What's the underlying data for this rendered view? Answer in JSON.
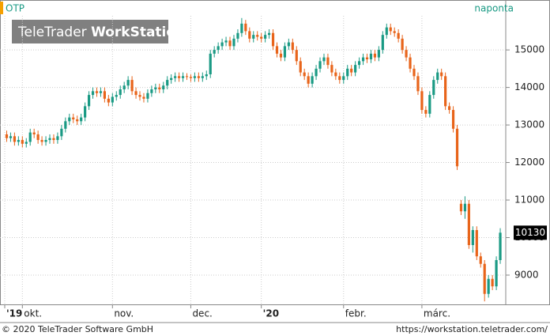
{
  "chart_data": {
    "type": "candlestick",
    "title": "OTP",
    "frequency": "naponta",
    "logo": [
      "TeleTrader",
      "WorkStation"
    ],
    "footer_left": "© 2020 TeleTrader Software GmbH",
    "footer_right": "https://workstation.teletrader.com/",
    "up_color": "#1a9a84",
    "down_color": "#e8641a",
    "grid": true,
    "ylim": [
      8220,
      16330
    ],
    "yticks": [
      9000,
      10000,
      11000,
      12000,
      13000,
      14000,
      15000
    ],
    "xlim": [
      -0.5,
      127
    ],
    "xticks": [
      {
        "value": -0.5,
        "label": "'19"
      },
      {
        "value": 4,
        "label": "okt."
      },
      {
        "value": 27,
        "label": "nov."
      },
      {
        "value": 47,
        "label": "dec."
      },
      {
        "value": 65,
        "label": "'20"
      },
      {
        "value": 86,
        "label": "febr."
      },
      {
        "value": 106,
        "label": "márc."
      }
    ],
    "candles": [
      [
        12750,
        12850,
        12550,
        12650
      ],
      [
        12650,
        12800,
        12550,
        12700
      ],
      [
        12700,
        12800,
        12450,
        12550
      ],
      [
        12550,
        12700,
        12450,
        12600
      ],
      [
        12600,
        12700,
        12400,
        12500
      ],
      [
        12500,
        12650,
        12400,
        12550
      ],
      [
        12550,
        12900,
        12450,
        12800
      ],
      [
        12800,
        12900,
        12650,
        12750
      ],
      [
        12750,
        12850,
        12500,
        12600
      ],
      [
        12600,
        12700,
        12450,
        12550
      ],
      [
        12550,
        12700,
        12450,
        12600
      ],
      [
        12600,
        12750,
        12500,
        12650
      ],
      [
        12650,
        12750,
        12500,
        12600
      ],
      [
        12600,
        12800,
        12500,
        12700
      ],
      [
        12700,
        13000,
        12600,
        12900
      ],
      [
        12900,
        13200,
        12800,
        13100
      ],
      [
        13100,
        13300,
        13000,
        13200
      ],
      [
        13200,
        13300,
        13050,
        13150
      ],
      [
        13150,
        13250,
        13000,
        13100
      ],
      [
        13100,
        13300,
        13000,
        13200
      ],
      [
        13200,
        13600,
        13100,
        13500
      ],
      [
        13500,
        13900,
        13400,
        13800
      ],
      [
        13800,
        14000,
        13700,
        13900
      ],
      [
        13900,
        14000,
        13750,
        13850
      ],
      [
        13850,
        14000,
        13750,
        13900
      ],
      [
        13900,
        14000,
        13600,
        13700
      ],
      [
        13700,
        13800,
        13500,
        13600
      ],
      [
        13600,
        13850,
        13500,
        13750
      ],
      [
        13750,
        13900,
        13650,
        13800
      ],
      [
        13800,
        14050,
        13700,
        13950
      ],
      [
        13950,
        14150,
        13850,
        14050
      ],
      [
        14050,
        14300,
        13950,
        14200
      ],
      [
        14200,
        14300,
        13800,
        13900
      ],
      [
        13900,
        14000,
        13700,
        13800
      ],
      [
        13800,
        13900,
        13650,
        13750
      ],
      [
        13750,
        13850,
        13600,
        13700
      ],
      [
        13700,
        13950,
        13600,
        13850
      ],
      [
        13850,
        14050,
        13750,
        13950
      ],
      [
        13950,
        14100,
        13850,
        14000
      ],
      [
        14000,
        14100,
        13850,
        13950
      ],
      [
        13950,
        14150,
        13850,
        14050
      ],
      [
        14050,
        14300,
        13950,
        14200
      ],
      [
        14200,
        14350,
        14100,
        14250
      ],
      [
        14250,
        14400,
        14150,
        14300
      ],
      [
        14300,
        14400,
        14150,
        14250
      ],
      [
        14250,
        14400,
        14150,
        14300
      ],
      [
        14300,
        14380,
        14200,
        14280
      ],
      [
        14280,
        14350,
        14150,
        14250
      ],
      [
        14250,
        14400,
        14150,
        14300
      ],
      [
        14300,
        14400,
        14150,
        14250
      ],
      [
        14250,
        14400,
        14150,
        14300
      ],
      [
        14300,
        14450,
        14200,
        14350
      ],
      [
        14350,
        15000,
        14250,
        14900
      ],
      [
        14900,
        15100,
        14800,
        15000
      ],
      [
        15000,
        15200,
        14900,
        15100
      ],
      [
        15100,
        15300,
        15000,
        15200
      ],
      [
        15200,
        15350,
        15100,
        15250
      ],
      [
        15250,
        15350,
        15000,
        15100
      ],
      [
        15100,
        15400,
        15000,
        15300
      ],
      [
        15300,
        15550,
        15200,
        15450
      ],
      [
        15450,
        15850,
        15350,
        15700
      ],
      [
        15700,
        15800,
        15400,
        15500
      ],
      [
        15500,
        15600,
        15200,
        15300
      ],
      [
        15300,
        15500,
        15200,
        15400
      ],
      [
        15400,
        15500,
        15250,
        15350
      ],
      [
        15350,
        15450,
        15200,
        15300
      ],
      [
        15300,
        15500,
        15200,
        15400
      ],
      [
        15400,
        15550,
        15300,
        15450
      ],
      [
        15450,
        15550,
        15000,
        15100
      ],
      [
        15100,
        15200,
        14800,
        14900
      ],
      [
        14900,
        15000,
        14700,
        14800
      ],
      [
        14800,
        15200,
        14700,
        15100
      ],
      [
        15100,
        15300,
        15000,
        15200
      ],
      [
        15200,
        15300,
        14900,
        15000
      ],
      [
        15000,
        15100,
        14600,
        14700
      ],
      [
        14700,
        14800,
        14300,
        14400
      ],
      [
        14400,
        14500,
        14200,
        14300
      ],
      [
        14300,
        14400,
        14000,
        14100
      ],
      [
        14100,
        14400,
        14000,
        14300
      ],
      [
        14300,
        14600,
        14200,
        14500
      ],
      [
        14500,
        14800,
        14400,
        14700
      ],
      [
        14700,
        14900,
        14600,
        14800
      ],
      [
        14800,
        14900,
        14500,
        14600
      ],
      [
        14600,
        14700,
        14300,
        14400
      ],
      [
        14400,
        14500,
        14200,
        14300
      ],
      [
        14300,
        14400,
        14100,
        14200
      ],
      [
        14200,
        14400,
        14100,
        14300
      ],
      [
        14300,
        14600,
        14200,
        14500
      ],
      [
        14500,
        14600,
        14300,
        14400
      ],
      [
        14400,
        14700,
        14300,
        14600
      ],
      [
        14600,
        14800,
        14500,
        14700
      ],
      [
        14700,
        14900,
        14600,
        14800
      ],
      [
        14800,
        14900,
        14650,
        14750
      ],
      [
        14750,
        15000,
        14650,
        14900
      ],
      [
        14900,
        15000,
        14700,
        14800
      ],
      [
        14800,
        15100,
        14700,
        15000
      ],
      [
        15000,
        15500,
        14900,
        15400
      ],
      [
        15400,
        15700,
        15300,
        15600
      ],
      [
        15600,
        15700,
        15400,
        15500
      ],
      [
        15500,
        15600,
        15350,
        15450
      ],
      [
        15450,
        15550,
        15200,
        15300
      ],
      [
        15300,
        15400,
        14900,
        15000
      ],
      [
        15000,
        15100,
        14700,
        14800
      ],
      [
        14800,
        14900,
        14400,
        14500
      ],
      [
        14500,
        14600,
        14200,
        14300
      ],
      [
        14300,
        14400,
        13800,
        13900
      ],
      [
        13900,
        14000,
        13300,
        13400
      ],
      [
        13400,
        13500,
        13200,
        13300
      ],
      [
        13300,
        13900,
        13200,
        13800
      ],
      [
        13800,
        14300,
        13700,
        14200
      ],
      [
        14200,
        14500,
        14100,
        14400
      ],
      [
        14400,
        14500,
        14200,
        14300
      ],
      [
        14300,
        14400,
        13400,
        13500
      ],
      [
        13500,
        13600,
        13300,
        13400
      ],
      [
        13400,
        13500,
        12800,
        12900
      ],
      [
        12900,
        13000,
        11800,
        11900
      ],
      [
        10900,
        11000,
        10600,
        10700
      ],
      [
        10700,
        11100,
        10500,
        10900
      ],
      [
        10900,
        11000,
        9700,
        9800
      ],
      [
        9800,
        10300,
        9600,
        10200
      ],
      [
        10200,
        10300,
        9400,
        9500
      ],
      [
        9500,
        9600,
        9200,
        9300
      ],
      [
        9300,
        9400,
        8300,
        8500
      ],
      [
        8500,
        9000,
        8400,
        8900
      ],
      [
        8900,
        9000,
        8600,
        8700
      ],
      [
        8700,
        9500,
        8600,
        9400
      ],
      [
        9400,
        10250,
        9300,
        10130
      ]
    ]
  }
}
